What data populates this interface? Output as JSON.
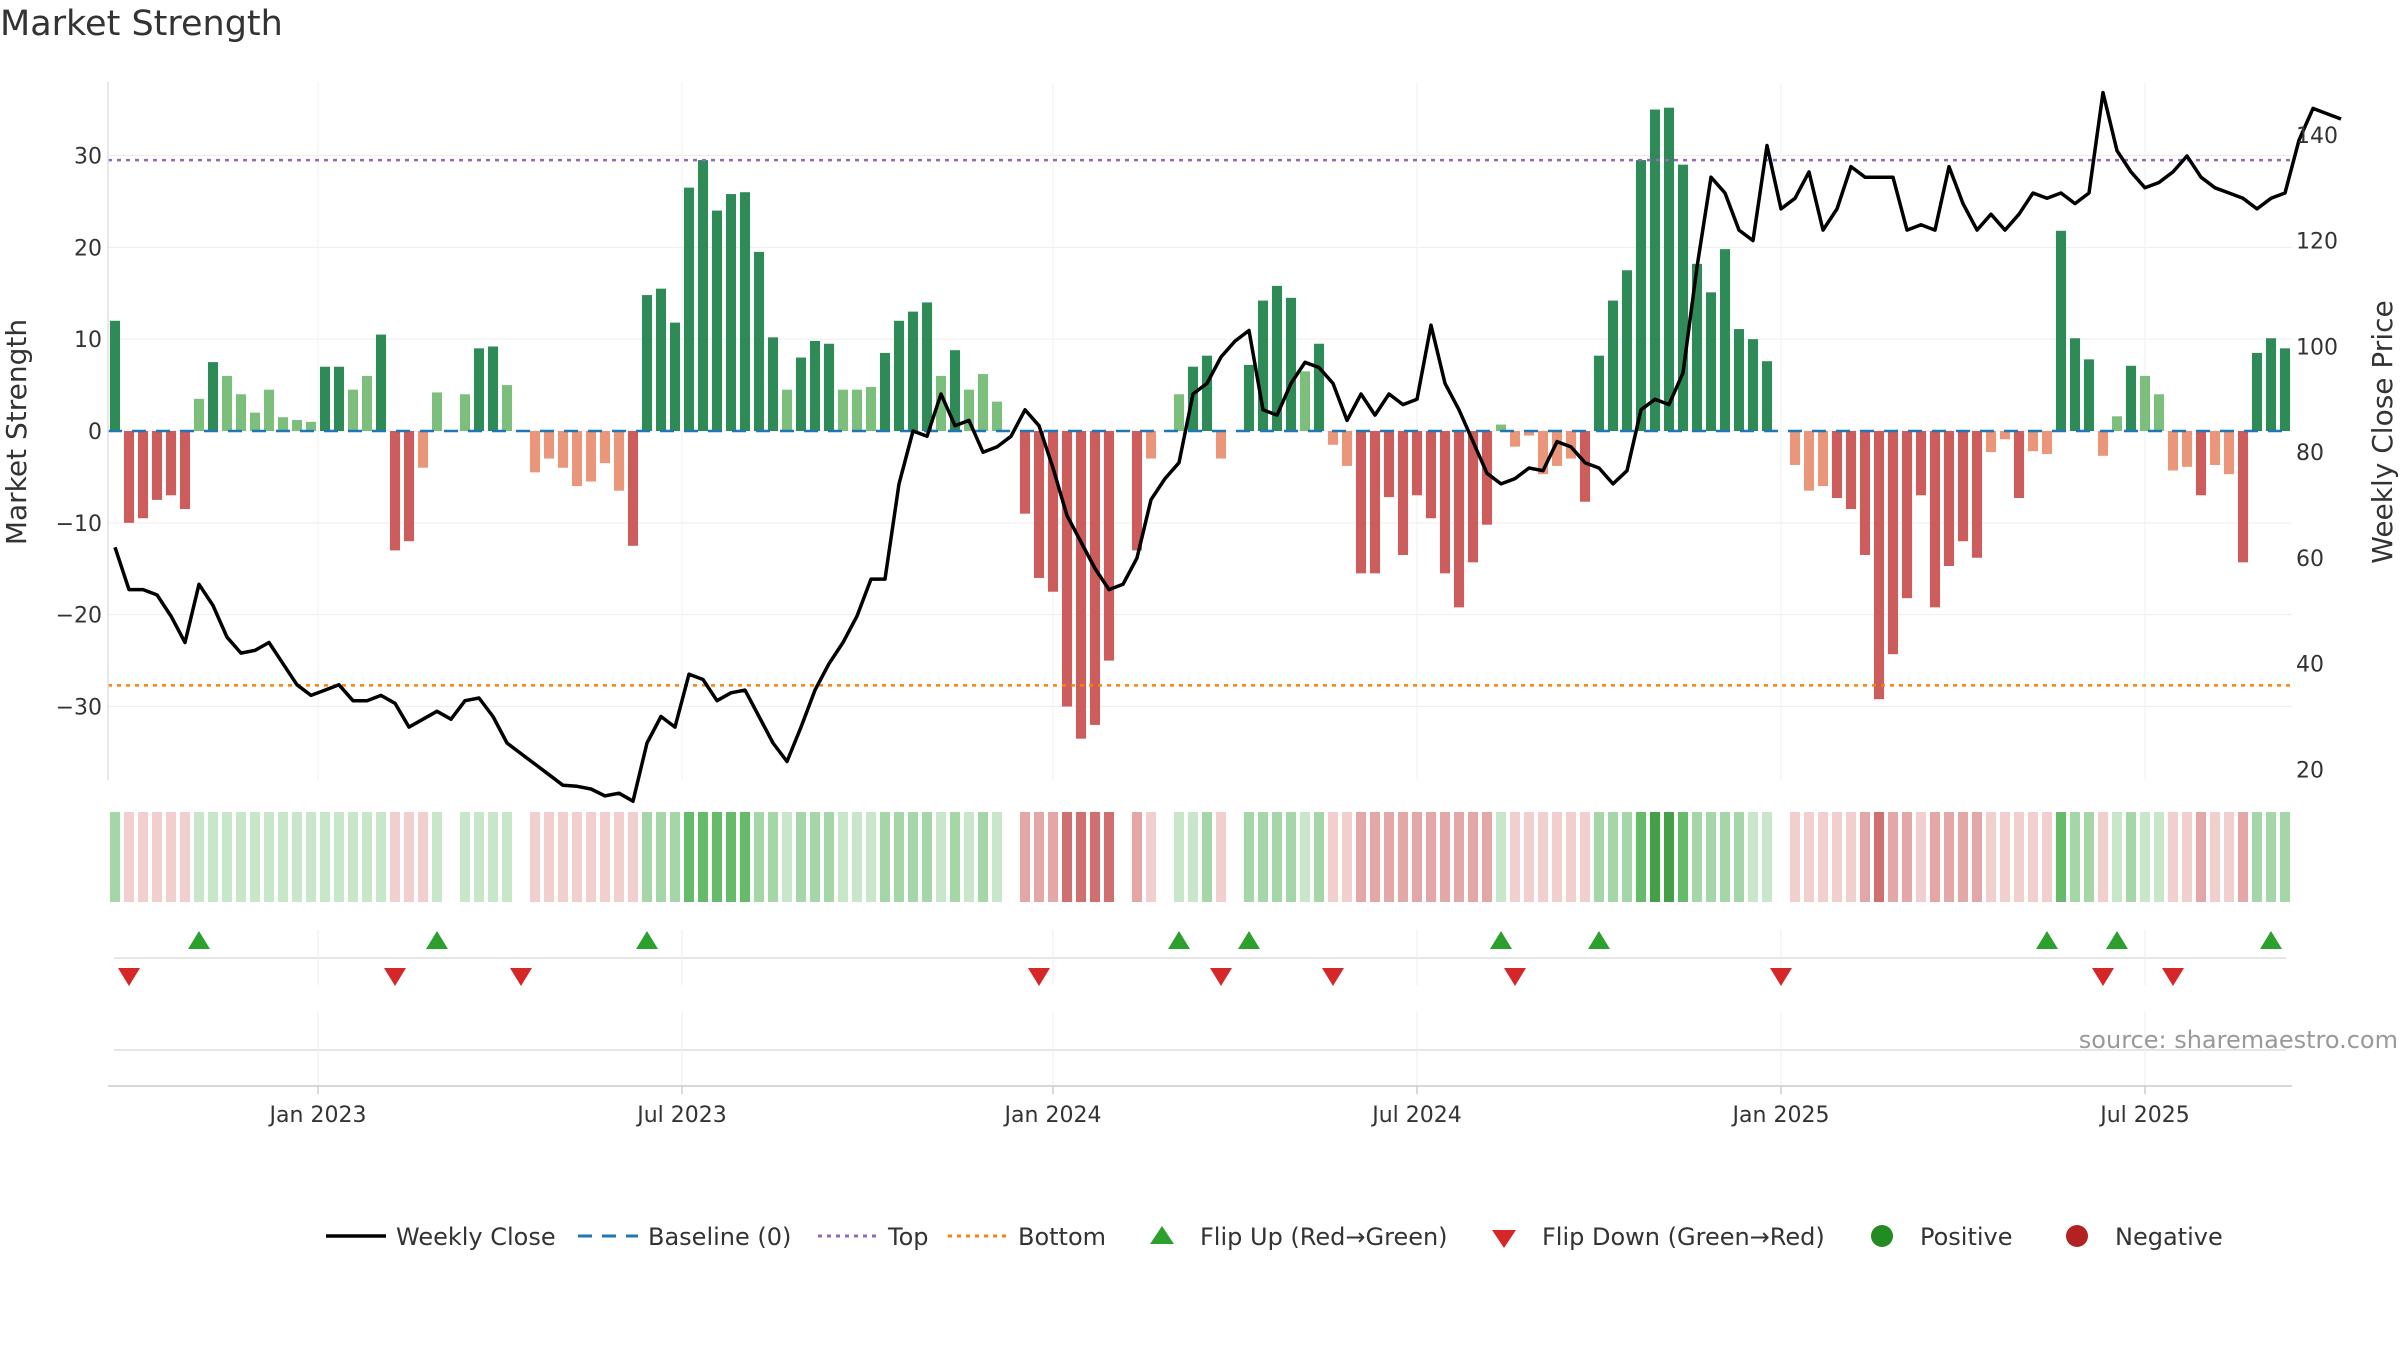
{
  "chart_data": {
    "type": "bar",
    "title": "Market Strength",
    "ylabel_left": "Market Strength",
    "ylabel_right": "Weekly Close Price",
    "left_ylim": [
      -38,
      38
    ],
    "right_ylim": [
      18,
      150
    ],
    "left_ticks": [
      -30,
      -20,
      -10,
      0,
      10,
      20,
      30
    ],
    "left_tick_labels": [
      "−30",
      "−20",
      "−10",
      "0",
      "10",
      "20",
      "30"
    ],
    "right_ticks": [
      20,
      40,
      60,
      80,
      100,
      120,
      140
    ],
    "right_tick_labels": [
      "20",
      "40",
      "60",
      "80",
      "100",
      "120",
      "140"
    ],
    "top_level": 29.5,
    "bottom_level": -27.7,
    "x_tick_labels": [
      "Jan 2023",
      "Jul 2023",
      "Jan 2024",
      "Jul 2024",
      "Jan 2025",
      "Jul 2025"
    ],
    "x_tick_weeks": [
      15,
      41,
      67.5,
      93.5,
      119.5,
      145.5
    ],
    "grid": true,
    "legend_position": "bottom",
    "source": "source: sharemaestro.com",
    "colors": {
      "green_strong": "#2e8b57",
      "green_light": "#7cbf7c",
      "red_strong": "#cd5c5c",
      "red_light": "#e9967a",
      "close_line": "#000000",
      "baseline": "#1f77b4",
      "top_line": "#9467bd",
      "bottom_line": "#ff7f0e",
      "flip_up": "#2ca02c",
      "flip_down": "#d62728",
      "positive": "#228b22",
      "negative": "#b22222"
    },
    "strength": [
      12,
      -10,
      -9.5,
      -7.5,
      -7,
      -8.5,
      3.5,
      7.5,
      6,
      4,
      2,
      4.5,
      1.5,
      1.2,
      1,
      7,
      7,
      4.5,
      6,
      10.5,
      -13,
      -12,
      -4,
      4.2,
      0,
      4,
      9,
      9.2,
      5,
      0,
      -4.5,
      -3,
      -4,
      -6,
      -5.5,
      -3.5,
      -6.5,
      -12.5,
      14.8,
      15.5,
      11.8,
      26.5,
      29.5,
      24,
      25.8,
      26,
      19.5,
      10.2,
      4.5,
      8,
      9.8,
      9.5,
      4.5,
      4.5,
      4.8,
      8.5,
      12,
      13,
      14,
      6,
      8.8,
      4.5,
      6.2,
      3.2,
      0,
      -9,
      -16,
      -17.5,
      -30,
      -33.5,
      -32,
      -25,
      0,
      -13,
      -3,
      0,
      4,
      7,
      8.2,
      -3,
      0,
      7.2,
      14.2,
      15.8,
      14.5,
      6.5,
      9.5,
      -1.5,
      -3.8,
      -15.5,
      -15.5,
      -7.2,
      -13.5,
      -7,
      -9.5,
      -15.5,
      -19.2,
      -14.3,
      -10.2,
      0.7,
      -1.7,
      -0.5,
      -4.7,
      -3.8,
      -3,
      -7.7,
      8.2,
      14.2,
      17.5,
      29.5,
      35,
      35.2,
      29,
      18.2,
      15.1,
      19.8,
      11.1,
      10,
      7.6,
      0,
      -3.7,
      -6.5,
      -6,
      -7.3,
      -8.5,
      -13.5,
      -29.2,
      -24.3,
      -18.2,
      -7,
      -19.2,
      -14.7,
      -12,
      -13.8,
      -2.3,
      -0.9,
      -7.3,
      -2.2,
      -2.5,
      21.8,
      10.1,
      7.8,
      -2.7,
      1.6,
      7.1,
      6,
      4,
      -4.3,
      -3.9,
      -7,
      -3.7,
      -4.7,
      -14.3,
      8.5,
      10.1,
      9
    ],
    "weekly_close": [
      62,
      54,
      54,
      53,
      49,
      44,
      55,
      51,
      45,
      42,
      42.5,
      44,
      40,
      36,
      34,
      35,
      36,
      33,
      33,
      34,
      32.5,
      28,
      29.5,
      31,
      29.5,
      33,
      33.5,
      30,
      25,
      23,
      21,
      19,
      17,
      16.8,
      16.3,
      15,
      15.5,
      14,
      25,
      30,
      28,
      38,
      37,
      33,
      34.5,
      35,
      30,
      25,
      21.5,
      28,
      35,
      40,
      44,
      49,
      56,
      56,
      74,
      84,
      83,
      91,
      85,
      86,
      80,
      81,
      83,
      88,
      85,
      77,
      68,
      63,
      58,
      54,
      55,
      60,
      71,
      75,
      78,
      91,
      93,
      98,
      101,
      103,
      88,
      87,
      93,
      97,
      96,
      93,
      86,
      91,
      87,
      91,
      89,
      90,
      104,
      93,
      88,
      82,
      76,
      74,
      75,
      77,
      76.5,
      82,
      81,
      78,
      77,
      74,
      76.5,
      88,
      90,
      89,
      95,
      115,
      132,
      129,
      122,
      120,
      138,
      126,
      128,
      133,
      122,
      126,
      134,
      132,
      132,
      132,
      122,
      123,
      122,
      134,
      127,
      122,
      125,
      122,
      125,
      129,
      128,
      129,
      127,
      129,
      148,
      137,
      133,
      130,
      131,
      133,
      136,
      132,
      130,
      129,
      128,
      126,
      128,
      129,
      139,
      145,
      144,
      143
    ],
    "heat_strips": [
      2,
      -1,
      -1,
      -1,
      -1,
      -1,
      1,
      1,
      1,
      1,
      1,
      1,
      1,
      1,
      1,
      1,
      1,
      1,
      1,
      1,
      -1,
      -1,
      -1,
      1,
      0,
      1,
      1,
      1,
      1,
      0,
      -1,
      -1,
      -1,
      -1,
      -1,
      -1,
      -1,
      -1,
      2,
      2,
      2,
      3,
      3,
      3,
      3,
      3,
      2,
      2,
      1,
      2,
      2,
      2,
      1,
      1,
      1,
      2,
      2,
      2,
      2,
      1,
      2,
      1,
      2,
      1,
      0,
      -2,
      -2,
      -2,
      -3,
      -3,
      -3,
      -3,
      0,
      -2,
      -1,
      0,
      1,
      1,
      2,
      -1,
      0,
      2,
      2,
      2,
      2,
      1,
      2,
      -1,
      -1,
      -2,
      -2,
      -2,
      -2,
      -2,
      -2,
      -2,
      -2,
      -2,
      -2,
      1,
      -1,
      -1,
      -1,
      -1,
      -1,
      -1,
      2,
      2,
      2,
      3,
      4,
      4,
      3,
      2,
      2,
      2,
      2,
      1,
      1,
      0,
      -1,
      -1,
      -1,
      -1,
      -1,
      -2,
      -3,
      -2,
      -2,
      -1,
      -2,
      -2,
      -2,
      -2,
      -1,
      -1,
      -1,
      -1,
      -1,
      3,
      2,
      2,
      -1,
      1,
      2,
      1,
      1,
      -1,
      -1,
      -2,
      -1,
      -1,
      -2,
      2,
      2,
      2
    ],
    "flip_up_weeks": [
      6,
      23,
      38,
      76,
      81,
      99,
      106,
      138,
      143,
      154
    ],
    "flip_down_weeks": [
      1,
      20,
      29,
      66,
      79,
      87,
      100,
      119,
      142,
      147
    ],
    "legend": [
      {
        "label": "Weekly Close",
        "symbol": "line"
      },
      {
        "label": "Baseline (0)",
        "symbol": "dash"
      },
      {
        "label": "Top",
        "symbol": "dot-purple"
      },
      {
        "label": "Bottom",
        "symbol": "dot-orange"
      },
      {
        "label": "Flip Up (Red→Green)",
        "symbol": "tri-up"
      },
      {
        "label": "Flip Down (Green→Red)",
        "symbol": "tri-down"
      },
      {
        "label": "Positive",
        "symbol": "circle-green"
      },
      {
        "label": "Negative",
        "symbol": "circle-red"
      }
    ]
  }
}
